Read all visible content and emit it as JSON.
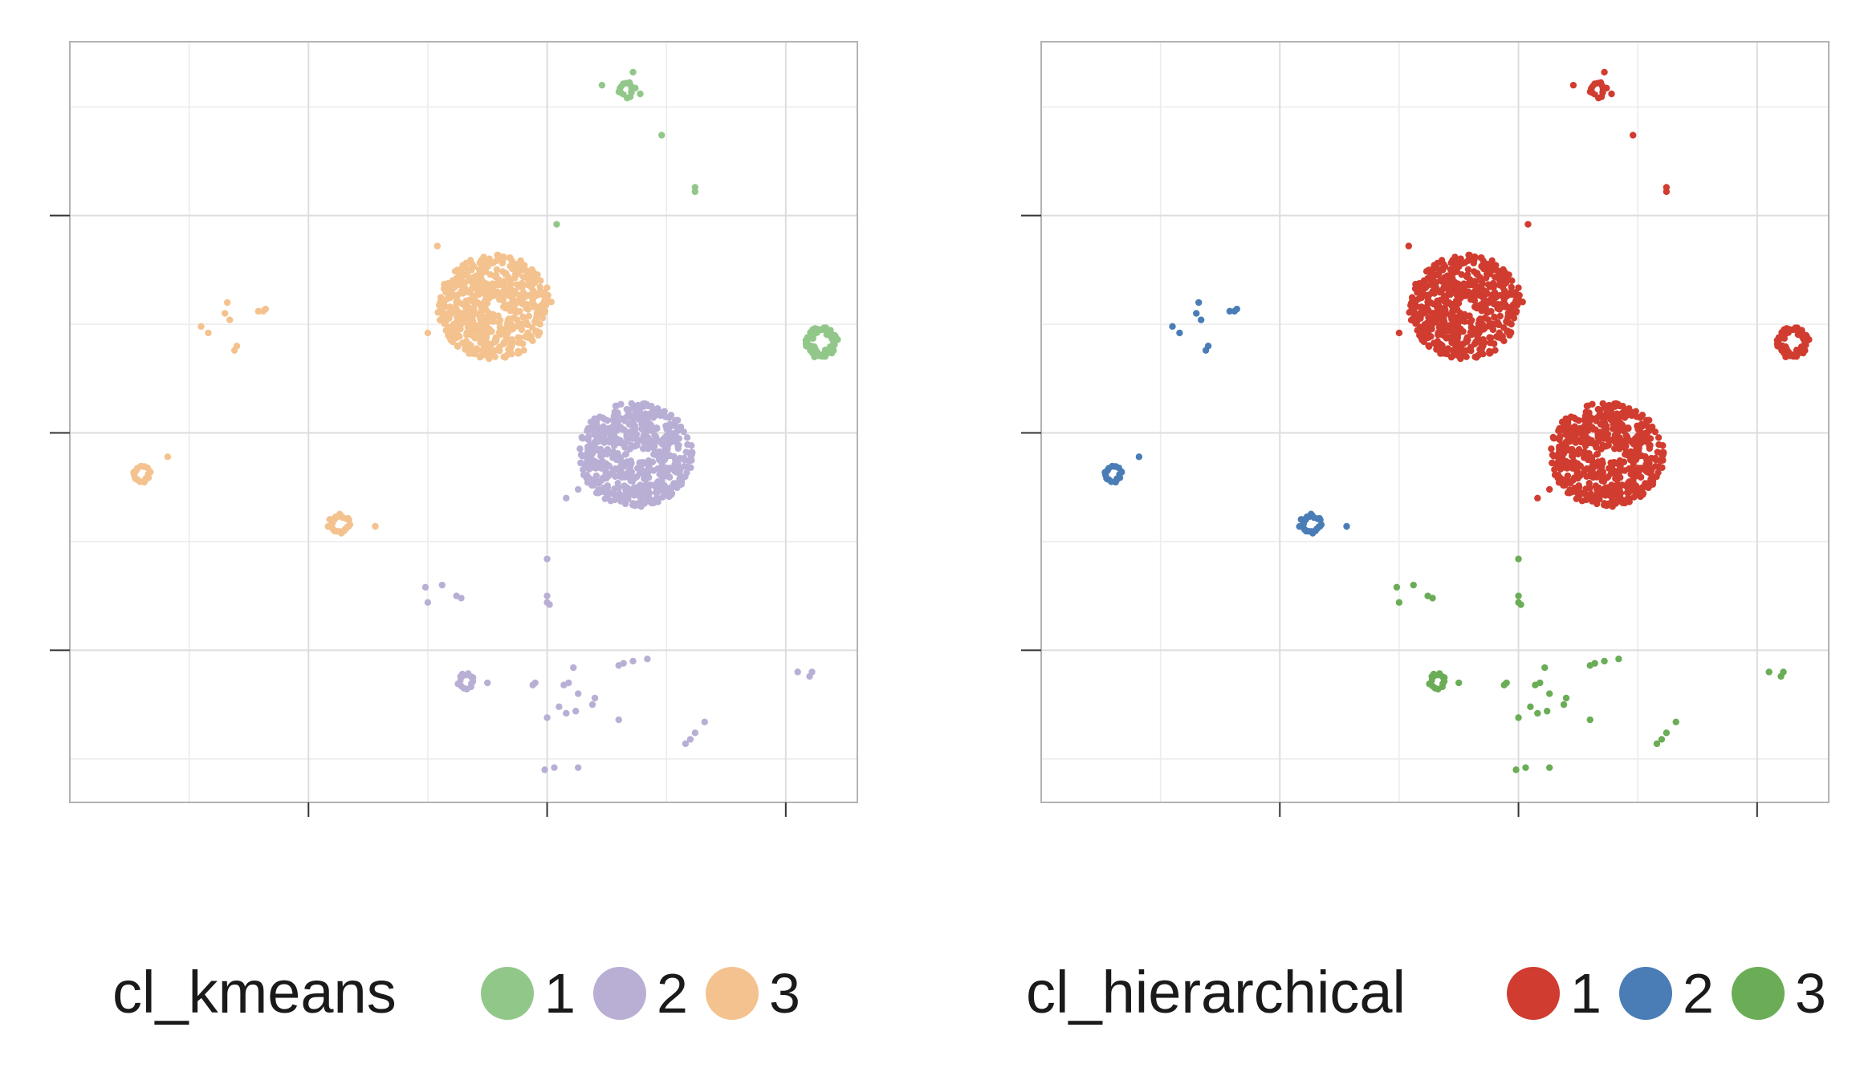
{
  "colors": {
    "panel_border": "#b3b3b3",
    "grid_major": "#dddddd",
    "grid_minor": "#ececec",
    "axis_tick": "#333333",
    "text": "#1a1a1a"
  },
  "chart_data": [
    {
      "type": "scatter",
      "title": "",
      "xlabel": "",
      "ylabel": "",
      "xlim": [
        -20,
        13
      ],
      "ylim": [
        -17,
        18
      ],
      "x_ticks": [
        -10,
        0,
        10
      ],
      "y_ticks": [
        -10,
        0,
        10
      ],
      "grid": true,
      "legend": {
        "title": "cl_kmeans",
        "placement": "bottom",
        "entries": [
          {
            "label": "1",
            "color": "#92c78a"
          },
          {
            "label": "2",
            "color": "#b9afd5"
          },
          {
            "label": "3",
            "color": "#f4c28e"
          }
        ]
      },
      "clusters": [
        {
          "group": "3",
          "shape": "disk",
          "cx": -2.2,
          "cy": 5.8,
          "r": 2.4,
          "n": 560
        },
        {
          "group": "2",
          "shape": "disk",
          "cx": 3.7,
          "cy": -1.0,
          "r": 2.4,
          "n": 560
        },
        {
          "group": "1",
          "shape": "ring",
          "cx": 11.5,
          "cy": 4.2,
          "r": 0.7,
          "n": 60
        },
        {
          "group": "1",
          "shape": "ring",
          "cx": 3.3,
          "cy": 15.8,
          "r": 0.4,
          "n": 14
        },
        {
          "group": "3",
          "shape": "ring",
          "cx": -17.0,
          "cy": -1.9,
          "r": 0.4,
          "n": 20
        },
        {
          "group": "3",
          "shape": "ring",
          "cx": -8.7,
          "cy": -4.2,
          "r": 0.5,
          "n": 26
        },
        {
          "group": "2",
          "shape": "ring",
          "cx": -3.4,
          "cy": -11.4,
          "r": 0.4,
          "n": 14
        }
      ],
      "points": [
        {
          "x": 4.8,
          "y": 13.7,
          "g": "1"
        },
        {
          "x": 6.2,
          "y": 11.1,
          "g": "1"
        },
        {
          "x": 6.2,
          "y": 11.3,
          "g": "1"
        },
        {
          "x": 0.4,
          "y": 9.6,
          "g": "1"
        },
        {
          "x": 2.3,
          "y": 16.0,
          "g": "1"
        },
        {
          "x": 3.6,
          "y": 16.6,
          "g": "1"
        },
        {
          "x": 3.9,
          "y": 15.6,
          "g": "1"
        },
        {
          "x": 11.2,
          "y": 3.5,
          "g": "1"
        },
        {
          "x": -4.6,
          "y": 8.6,
          "g": "3"
        },
        {
          "x": -5.0,
          "y": 4.6,
          "g": "3"
        },
        {
          "x": -13.4,
          "y": 6.0,
          "g": "3"
        },
        {
          "x": -13.3,
          "y": 5.2,
          "g": "3"
        },
        {
          "x": -13.5,
          "y": 5.5,
          "g": "3"
        },
        {
          "x": -14.5,
          "y": 4.9,
          "g": "3"
        },
        {
          "x": -14.2,
          "y": 4.6,
          "g": "3"
        },
        {
          "x": -13.0,
          "y": 4.0,
          "g": "3"
        },
        {
          "x": -13.1,
          "y": 3.8,
          "g": "3"
        },
        {
          "x": -12.1,
          "y": 5.6,
          "g": "3"
        },
        {
          "x": -11.9,
          "y": 5.6,
          "g": "3"
        },
        {
          "x": -11.8,
          "y": 5.7,
          "g": "3"
        },
        {
          "x": -15.9,
          "y": -1.1,
          "g": "3"
        },
        {
          "x": -7.2,
          "y": -4.3,
          "g": "3"
        },
        {
          "x": 0.8,
          "y": -3.0,
          "g": "2"
        },
        {
          "x": 1.3,
          "y": -2.6,
          "g": "2"
        },
        {
          "x": 0.0,
          "y": -5.8,
          "g": "2"
        },
        {
          "x": 0.0,
          "y": -7.5,
          "g": "2"
        },
        {
          "x": 0.0,
          "y": -7.8,
          "g": "2"
        },
        {
          "x": 0.1,
          "y": -7.9,
          "g": "2"
        },
        {
          "x": -5.1,
          "y": -7.1,
          "g": "2"
        },
        {
          "x": -4.4,
          "y": -7.0,
          "g": "2"
        },
        {
          "x": -5.0,
          "y": -7.8,
          "g": "2"
        },
        {
          "x": -3.8,
          "y": -7.5,
          "g": "2"
        },
        {
          "x": -3.6,
          "y": -7.6,
          "g": "2"
        },
        {
          "x": -2.5,
          "y": -11.5,
          "g": "2"
        },
        {
          "x": 1.1,
          "y": -10.8,
          "g": "2"
        },
        {
          "x": 3.2,
          "y": -10.6,
          "g": "2"
        },
        {
          "x": 3.6,
          "y": -10.5,
          "g": "2"
        },
        {
          "x": 4.2,
          "y": -10.4,
          "g": "2"
        },
        {
          "x": 3.0,
          "y": -10.7,
          "g": "2"
        },
        {
          "x": -0.6,
          "y": -11.6,
          "g": "2"
        },
        {
          "x": -0.5,
          "y": -11.5,
          "g": "2"
        },
        {
          "x": 0.7,
          "y": -11.6,
          "g": "2"
        },
        {
          "x": 0.9,
          "y": -11.5,
          "g": "2"
        },
        {
          "x": 1.3,
          "y": -12.0,
          "g": "2"
        },
        {
          "x": 1.9,
          "y": -12.5,
          "g": "2"
        },
        {
          "x": 2.0,
          "y": -12.2,
          "g": "2"
        },
        {
          "x": 0.5,
          "y": -12.6,
          "g": "2"
        },
        {
          "x": 0.8,
          "y": -12.9,
          "g": "2"
        },
        {
          "x": 1.2,
          "y": -12.8,
          "g": "2"
        },
        {
          "x": 0.0,
          "y": -13.1,
          "g": "2"
        },
        {
          "x": 3.0,
          "y": -13.2,
          "g": "2"
        },
        {
          "x": 5.8,
          "y": -14.3,
          "g": "2"
        },
        {
          "x": 6.2,
          "y": -13.8,
          "g": "2"
        },
        {
          "x": 6.6,
          "y": -13.3,
          "g": "2"
        },
        {
          "x": 6.0,
          "y": -14.1,
          "g": "2"
        },
        {
          "x": -0.1,
          "y": -15.5,
          "g": "2"
        },
        {
          "x": 0.3,
          "y": -15.4,
          "g": "2"
        },
        {
          "x": 1.3,
          "y": -15.4,
          "g": "2"
        },
        {
          "x": 10.5,
          "y": -11.0,
          "g": "2"
        },
        {
          "x": 11.0,
          "y": -11.2,
          "g": "2"
        },
        {
          "x": 11.1,
          "y": -11.0,
          "g": "2"
        }
      ]
    },
    {
      "type": "scatter",
      "title": "",
      "xlabel": "",
      "ylabel": "",
      "xlim": [
        -20,
        13
      ],
      "ylim": [
        -17,
        18
      ],
      "x_ticks": [
        -10,
        0,
        10
      ],
      "y_ticks": [
        -10,
        0,
        10
      ],
      "grid": true,
      "legend": {
        "title": "cl_hierarchical",
        "placement": "bottom",
        "entries": [
          {
            "label": "1",
            "color": "#d03c2f"
          },
          {
            "label": "2",
            "color": "#4a7db6"
          },
          {
            "label": "3",
            "color": "#6aad56"
          }
        ]
      },
      "clusters": [
        {
          "group": "1",
          "shape": "disk",
          "cx": -2.2,
          "cy": 5.8,
          "r": 2.4,
          "n": 560
        },
        {
          "group": "1",
          "shape": "disk",
          "cx": 3.7,
          "cy": -1.0,
          "r": 2.4,
          "n": 560
        },
        {
          "group": "1",
          "shape": "ring",
          "cx": 11.5,
          "cy": 4.2,
          "r": 0.7,
          "n": 60
        },
        {
          "group": "1",
          "shape": "ring",
          "cx": 3.3,
          "cy": 15.8,
          "r": 0.4,
          "n": 14
        },
        {
          "group": "2",
          "shape": "ring",
          "cx": -17.0,
          "cy": -1.9,
          "r": 0.4,
          "n": 20
        },
        {
          "group": "2",
          "shape": "ring",
          "cx": -8.7,
          "cy": -4.2,
          "r": 0.5,
          "n": 26
        },
        {
          "group": "3",
          "shape": "ring",
          "cx": -3.4,
          "cy": -11.4,
          "r": 0.4,
          "n": 14
        }
      ],
      "points": [
        {
          "x": 4.8,
          "y": 13.7,
          "g": "1"
        },
        {
          "x": 6.2,
          "y": 11.1,
          "g": "1"
        },
        {
          "x": 6.2,
          "y": 11.3,
          "g": "1"
        },
        {
          "x": 0.4,
          "y": 9.6,
          "g": "1"
        },
        {
          "x": 2.3,
          "y": 16.0,
          "g": "1"
        },
        {
          "x": 3.6,
          "y": 16.6,
          "g": "1"
        },
        {
          "x": 3.9,
          "y": 15.6,
          "g": "1"
        },
        {
          "x": 11.2,
          "y": 3.5,
          "g": "1"
        },
        {
          "x": -4.6,
          "y": 8.6,
          "g": "1"
        },
        {
          "x": -5.0,
          "y": 4.6,
          "g": "1"
        },
        {
          "x": -13.4,
          "y": 6.0,
          "g": "2"
        },
        {
          "x": -13.3,
          "y": 5.2,
          "g": "2"
        },
        {
          "x": -13.5,
          "y": 5.5,
          "g": "2"
        },
        {
          "x": -14.5,
          "y": 4.9,
          "g": "2"
        },
        {
          "x": -14.2,
          "y": 4.6,
          "g": "2"
        },
        {
          "x": -13.0,
          "y": 4.0,
          "g": "2"
        },
        {
          "x": -13.1,
          "y": 3.8,
          "g": "2"
        },
        {
          "x": -12.1,
          "y": 5.6,
          "g": "2"
        },
        {
          "x": -11.9,
          "y": 5.6,
          "g": "2"
        },
        {
          "x": -11.8,
          "y": 5.7,
          "g": "2"
        },
        {
          "x": -15.9,
          "y": -1.1,
          "g": "2"
        },
        {
          "x": -7.2,
          "y": -4.3,
          "g": "2"
        },
        {
          "x": 0.8,
          "y": -3.0,
          "g": "1"
        },
        {
          "x": 1.3,
          "y": -2.6,
          "g": "1"
        },
        {
          "x": 0.0,
          "y": -5.8,
          "g": "3"
        },
        {
          "x": 0.0,
          "y": -7.5,
          "g": "3"
        },
        {
          "x": 0.0,
          "y": -7.8,
          "g": "3"
        },
        {
          "x": 0.1,
          "y": -7.9,
          "g": "3"
        },
        {
          "x": -5.1,
          "y": -7.1,
          "g": "3"
        },
        {
          "x": -4.4,
          "y": -7.0,
          "g": "3"
        },
        {
          "x": -5.0,
          "y": -7.8,
          "g": "3"
        },
        {
          "x": -3.8,
          "y": -7.5,
          "g": "3"
        },
        {
          "x": -3.6,
          "y": -7.6,
          "g": "3"
        },
        {
          "x": -2.5,
          "y": -11.5,
          "g": "3"
        },
        {
          "x": 1.1,
          "y": -10.8,
          "g": "3"
        },
        {
          "x": 3.2,
          "y": -10.6,
          "g": "3"
        },
        {
          "x": 3.6,
          "y": -10.5,
          "g": "3"
        },
        {
          "x": 4.2,
          "y": -10.4,
          "g": "3"
        },
        {
          "x": 3.0,
          "y": -10.7,
          "g": "3"
        },
        {
          "x": -0.6,
          "y": -11.6,
          "g": "3"
        },
        {
          "x": -0.5,
          "y": -11.5,
          "g": "3"
        },
        {
          "x": 0.7,
          "y": -11.6,
          "g": "3"
        },
        {
          "x": 0.9,
          "y": -11.5,
          "g": "3"
        },
        {
          "x": 1.3,
          "y": -12.0,
          "g": "3"
        },
        {
          "x": 1.9,
          "y": -12.5,
          "g": "3"
        },
        {
          "x": 2.0,
          "y": -12.2,
          "g": "3"
        },
        {
          "x": 0.5,
          "y": -12.6,
          "g": "3"
        },
        {
          "x": 0.8,
          "y": -12.9,
          "g": "3"
        },
        {
          "x": 1.2,
          "y": -12.8,
          "g": "3"
        },
        {
          "x": 0.0,
          "y": -13.1,
          "g": "3"
        },
        {
          "x": 3.0,
          "y": -13.2,
          "g": "3"
        },
        {
          "x": 5.8,
          "y": -14.3,
          "g": "3"
        },
        {
          "x": 6.2,
          "y": -13.8,
          "g": "3"
        },
        {
          "x": 6.6,
          "y": -13.3,
          "g": "3"
        },
        {
          "x": 6.0,
          "y": -14.1,
          "g": "3"
        },
        {
          "x": -0.1,
          "y": -15.5,
          "g": "3"
        },
        {
          "x": 0.3,
          "y": -15.4,
          "g": "3"
        },
        {
          "x": 1.3,
          "y": -15.4,
          "g": "3"
        },
        {
          "x": 10.5,
          "y": -11.0,
          "g": "3"
        },
        {
          "x": 11.0,
          "y": -11.2,
          "g": "3"
        },
        {
          "x": 11.1,
          "y": -11.0,
          "g": "3"
        }
      ]
    }
  ]
}
